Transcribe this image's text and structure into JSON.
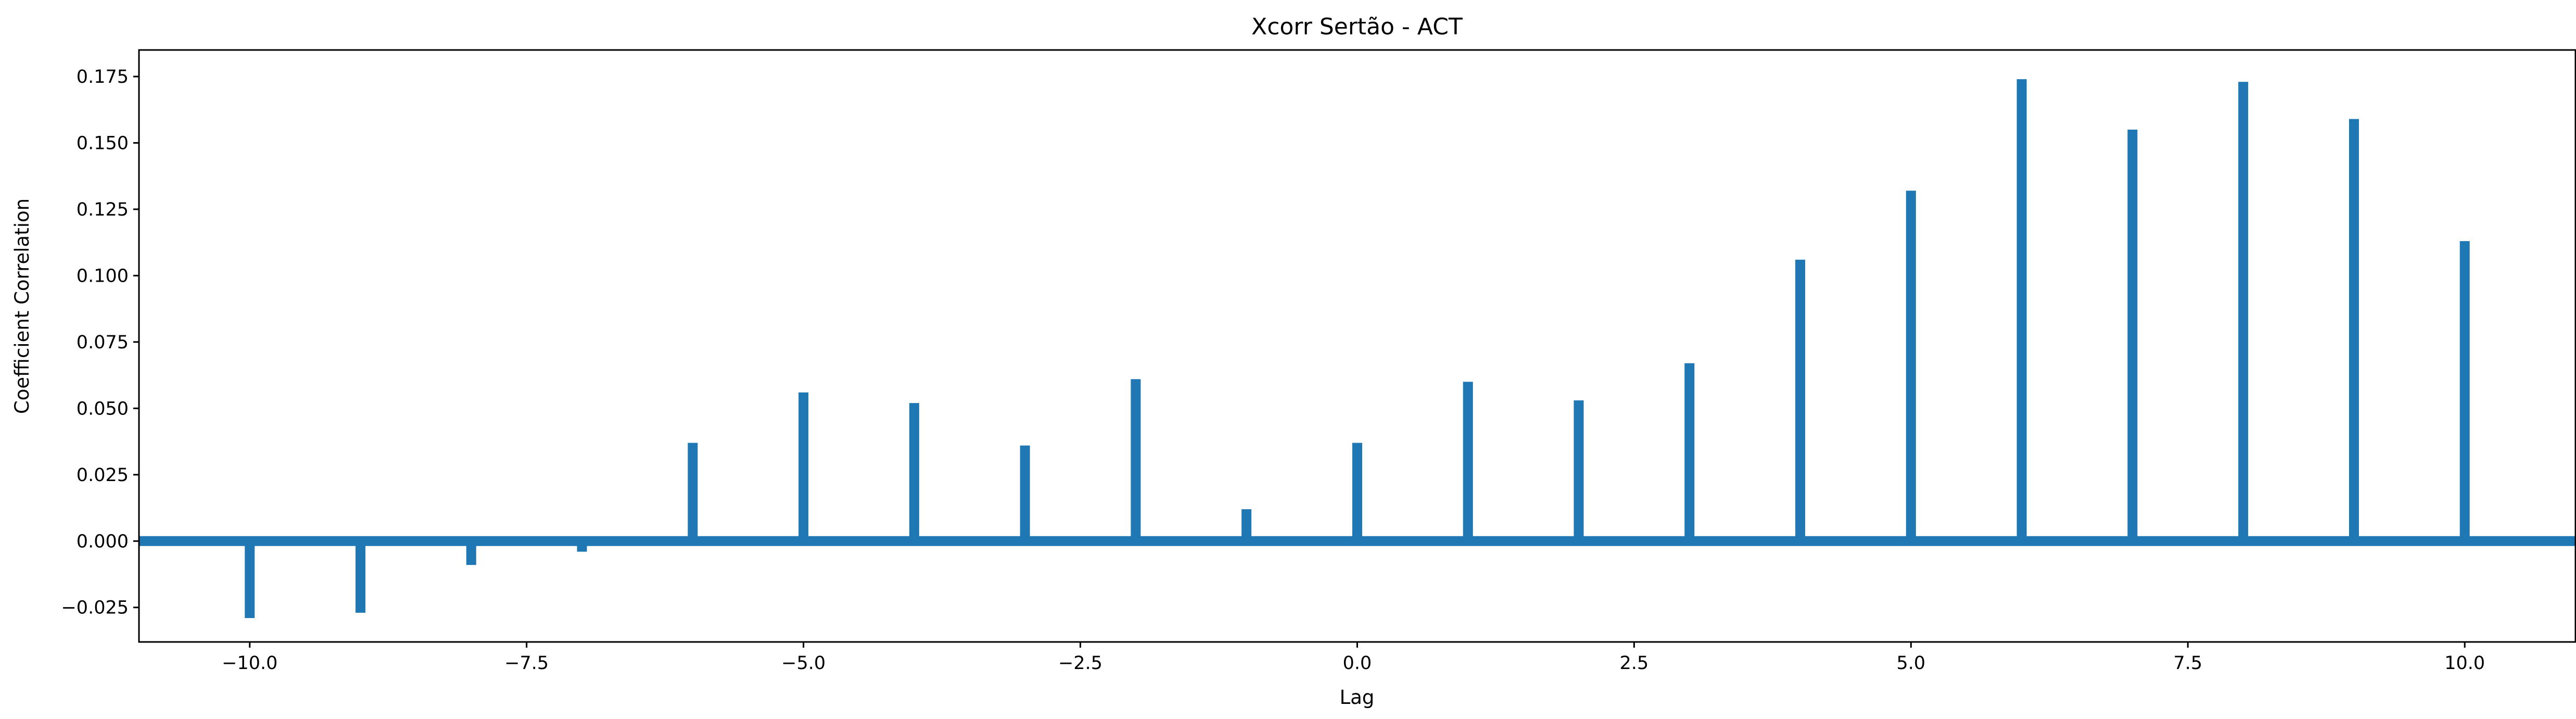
{
  "chart_data": {
    "type": "bar",
    "title": "Xcorr Sertão - ACT",
    "xlabel": "Lag",
    "ylabel": "Coefficient Correlation",
    "xlim": [
      -11,
      11
    ],
    "ylim": [
      -0.038,
      0.185
    ],
    "x_ticks": [
      -10.0,
      -7.5,
      -5.0,
      -2.5,
      0.0,
      2.5,
      5.0,
      7.5,
      10.0
    ],
    "x_tick_labels": [
      "−10.0",
      "−7.5",
      "−5.0",
      "−2.5",
      "0.0",
      "2.5",
      "5.0",
      "7.5",
      "10.0"
    ],
    "y_ticks": [
      -0.025,
      0.0,
      0.025,
      0.05,
      0.075,
      0.1,
      0.125,
      0.15,
      0.175
    ],
    "y_tick_labels": [
      "−0.025",
      "0.000",
      "0.025",
      "0.050",
      "0.075",
      "0.100",
      "0.125",
      "0.150",
      "0.175"
    ],
    "grid": false,
    "color": "#1f77b4",
    "baseline": 0,
    "x": [
      -10,
      -9,
      -8,
      -7,
      -6,
      -5,
      -4,
      -3,
      -2,
      -1,
      0,
      1,
      2,
      3,
      4,
      5,
      6,
      7,
      8,
      9,
      10
    ],
    "values": [
      -0.029,
      -0.027,
      -0.009,
      -0.004,
      0.037,
      0.056,
      0.052,
      0.036,
      0.061,
      0.012,
      0.037,
      0.06,
      0.053,
      0.067,
      0.106,
      0.132,
      0.174,
      0.155,
      0.173,
      0.159,
      0.113
    ]
  }
}
